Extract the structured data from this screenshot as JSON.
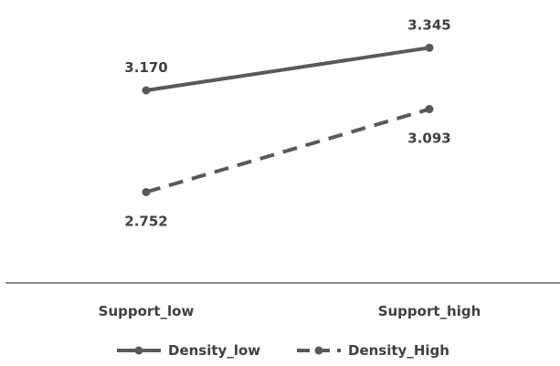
{
  "chart_data": {
    "type": "line",
    "title": "",
    "xlabel": "",
    "ylabel": "",
    "categories": [
      "Support_low",
      "Support_high"
    ],
    "ylim": [
      2.3,
      3.5
    ],
    "grid": false,
    "legend_position": "bottom",
    "series": [
      {
        "name": "Density_low",
        "values": [
          3.17,
          3.345
        ],
        "labels": [
          "3.170",
          "3.345"
        ],
        "style": "solid",
        "color": "#595959"
      },
      {
        "name": "Density_High",
        "values": [
          2.752,
          3.093
        ],
        "labels": [
          "2.752",
          "3.093"
        ],
        "style": "dashed",
        "color": "#595959"
      }
    ]
  }
}
